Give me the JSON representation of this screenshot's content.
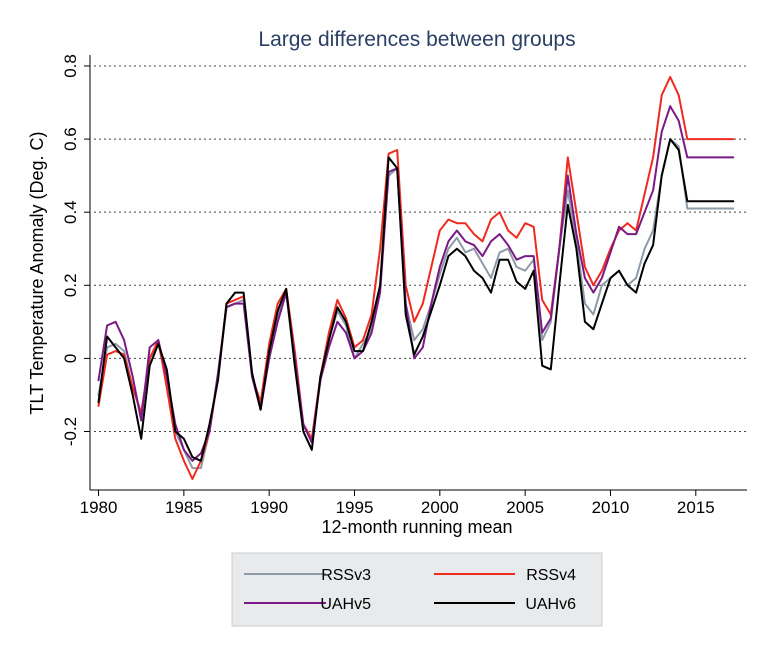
{
  "chart_data": {
    "type": "line",
    "title": "Large differences between groups",
    "xlabel": "12-month running mean",
    "ylabel": "TLT Temperature Anomaly (Deg. C)",
    "xlim": [
      1979.5,
      2018.0
    ],
    "ylim": [
      -0.36,
      0.83
    ],
    "x_ticks": [
      1980,
      1985,
      1990,
      1995,
      2000,
      2005,
      2010,
      2015
    ],
    "y_ticks": [
      -0.2,
      0,
      0.2,
      0.4,
      0.6,
      0.8
    ],
    "y_tick_labels": [
      "-0.2",
      "0",
      "0.2",
      "0.4",
      "0.6",
      "0.8"
    ],
    "grid": "horizontal dotted",
    "legend_position": "bottom",
    "x": [
      1980.0,
      1980.5,
      1981.0,
      1981.5,
      1982.0,
      1982.5,
      1983.0,
      1983.5,
      1984.0,
      1984.5,
      1985.0,
      1985.5,
      1986.0,
      1986.5,
      1987.0,
      1987.5,
      1988.0,
      1988.5,
      1989.0,
      1989.5,
      1990.0,
      1990.5,
      1991.0,
      1991.5,
      1992.0,
      1992.5,
      1993.0,
      1993.5,
      1994.0,
      1994.5,
      1995.0,
      1995.5,
      1996.0,
      1996.5,
      1997.0,
      1997.5,
      1998.0,
      1998.5,
      1999.0,
      1999.5,
      2000.0,
      2000.5,
      2001.0,
      2001.5,
      2002.0,
      2002.5,
      2003.0,
      2003.5,
      2004.0,
      2004.5,
      2005.0,
      2005.5,
      2006.0,
      2006.5,
      2007.0,
      2007.5,
      2008.0,
      2008.5,
      2009.0,
      2009.5,
      2010.0,
      2010.5,
      2011.0,
      2011.5,
      2012.0,
      2012.5,
      2013.0,
      2013.5,
      2014.0,
      2014.5,
      2015.0,
      2015.5,
      2016.0,
      2016.5,
      2017.0,
      2017.2
    ],
    "series": [
      {
        "name": "RSSv3",
        "color": "#8e9aa8",
        "values": [
          -0.1,
          0.03,
          0.04,
          0.02,
          -0.08,
          -0.15,
          0.0,
          0.04,
          -0.06,
          -0.2,
          -0.25,
          -0.3,
          -0.3,
          -0.2,
          -0.05,
          0.14,
          0.15,
          0.16,
          -0.05,
          -0.14,
          0.02,
          0.12,
          0.18,
          -0.02,
          -0.18,
          -0.23,
          -0.06,
          0.05,
          0.13,
          0.09,
          0.0,
          0.04,
          0.08,
          0.2,
          0.5,
          0.52,
          0.15,
          0.05,
          0.08,
          0.15,
          0.23,
          0.3,
          0.33,
          0.29,
          0.3,
          0.26,
          0.22,
          0.29,
          0.3,
          0.25,
          0.24,
          0.27,
          0.05,
          0.1,
          0.3,
          0.46,
          0.32,
          0.15,
          0.12,
          0.2,
          0.22,
          0.24,
          0.2,
          0.22,
          0.3,
          0.35,
          0.5,
          0.6,
          0.58,
          0.41,
          0.41,
          0.41,
          0.41,
          0.41,
          0.41,
          0.41
        ]
      },
      {
        "name": "RSSv4",
        "color": "#ef2b20",
        "values": [
          -0.13,
          0.01,
          0.02,
          0.01,
          -0.08,
          -0.15,
          0.0,
          0.05,
          -0.08,
          -0.22,
          -0.28,
          -0.33,
          -0.28,
          -0.2,
          -0.05,
          0.15,
          0.16,
          0.17,
          -0.05,
          -0.12,
          0.04,
          0.15,
          0.19,
          0.02,
          -0.18,
          -0.22,
          -0.05,
          0.07,
          0.16,
          0.11,
          0.03,
          0.05,
          0.12,
          0.3,
          0.56,
          0.57,
          0.2,
          0.1,
          0.15,
          0.25,
          0.35,
          0.38,
          0.37,
          0.37,
          0.34,
          0.32,
          0.38,
          0.4,
          0.35,
          0.33,
          0.37,
          0.36,
          0.16,
          0.12,
          0.3,
          0.55,
          0.4,
          0.25,
          0.2,
          0.24,
          0.3,
          0.35,
          0.37,
          0.35,
          0.45,
          0.55,
          0.72,
          0.77,
          0.72,
          0.6,
          0.6,
          0.6,
          0.6,
          0.6,
          0.6,
          0.6
        ]
      },
      {
        "name": "UAHv5",
        "color": "#7b1a86",
        "values": [
          -0.06,
          0.09,
          0.1,
          0.05,
          -0.05,
          -0.17,
          0.03,
          0.05,
          -0.05,
          -0.18,
          -0.25,
          -0.28,
          -0.26,
          -0.2,
          -0.04,
          0.14,
          0.15,
          0.15,
          -0.05,
          -0.14,
          0.0,
          0.1,
          0.18,
          0.0,
          -0.18,
          -0.23,
          -0.06,
          0.03,
          0.1,
          0.07,
          0.0,
          0.02,
          0.07,
          0.18,
          0.51,
          0.52,
          0.15,
          0.0,
          0.03,
          0.15,
          0.25,
          0.32,
          0.35,
          0.32,
          0.31,
          0.28,
          0.32,
          0.34,
          0.31,
          0.27,
          0.28,
          0.28,
          0.07,
          0.11,
          0.3,
          0.5,
          0.34,
          0.22,
          0.18,
          0.22,
          0.29,
          0.36,
          0.34,
          0.34,
          0.4,
          0.46,
          0.62,
          0.69,
          0.65,
          0.55,
          0.55,
          0.55,
          0.55,
          0.55,
          0.55,
          0.55
        ]
      },
      {
        "name": "UAHv6",
        "color": "#000000",
        "values": [
          -0.12,
          0.06,
          0.03,
          0.0,
          -0.1,
          -0.22,
          -0.02,
          0.04,
          -0.03,
          -0.2,
          -0.22,
          -0.27,
          -0.28,
          -0.18,
          -0.06,
          0.15,
          0.18,
          0.18,
          -0.04,
          -0.14,
          0.02,
          0.13,
          0.19,
          -0.02,
          -0.2,
          -0.25,
          -0.05,
          0.05,
          0.14,
          0.1,
          0.02,
          0.02,
          0.1,
          0.2,
          0.55,
          0.52,
          0.12,
          0.01,
          0.06,
          0.13,
          0.2,
          0.28,
          0.3,
          0.28,
          0.24,
          0.22,
          0.18,
          0.27,
          0.27,
          0.21,
          0.19,
          0.24,
          -0.02,
          -0.03,
          0.2,
          0.42,
          0.3,
          0.1,
          0.08,
          0.15,
          0.22,
          0.24,
          0.2,
          0.18,
          0.26,
          0.31,
          0.5,
          0.6,
          0.57,
          0.43,
          0.43,
          0.43,
          0.43,
          0.43,
          0.43,
          0.43
        ]
      }
    ]
  },
  "legend": {
    "items": [
      {
        "label": "RSSv3",
        "color": "#8e9aa8"
      },
      {
        "label": "RSSv4",
        "color": "#ef2b20"
      },
      {
        "label": "UAHv5",
        "color": "#7b1a86"
      },
      {
        "label": "UAHv6",
        "color": "#000000"
      }
    ]
  }
}
